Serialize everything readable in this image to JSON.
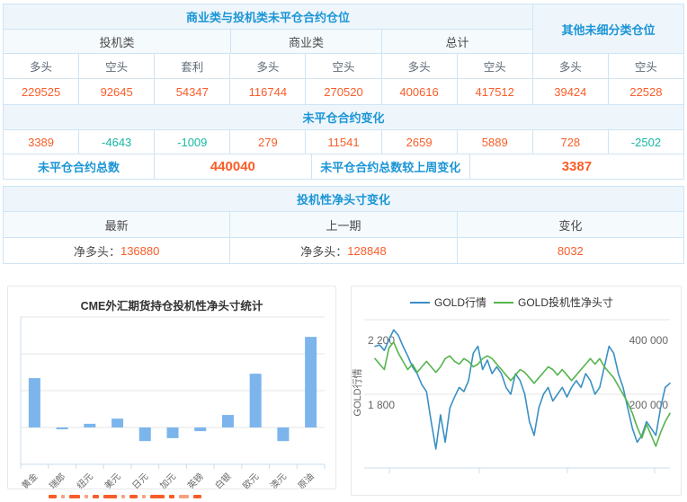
{
  "colors": {
    "border": "#cfe4f4",
    "header_bg": "#eef6fc",
    "blue_text": "#1b95d6",
    "orange": "#f95d29",
    "teal": "#18b8a2",
    "bar": "#7cb5ec",
    "line_blue": "#3a90c4",
    "line_green": "#55b54d",
    "axis": "#c9dcec",
    "grid": "#e6e6e6"
  },
  "position_table": {
    "main_header": "商业类与投机类未平仓合约仓位",
    "other_header": "其他未细分类仓位",
    "group_headers": [
      "投机类",
      "商业类",
      "总计"
    ],
    "col_headers": [
      "多头",
      "空头",
      "套利",
      "多头",
      "空头",
      "多头",
      "空头",
      "多头",
      "空头"
    ],
    "positions": [
      "229525",
      "92645",
      "54347",
      "116744",
      "270520",
      "400616",
      "417512",
      "39424",
      "22528"
    ],
    "change_header": "未平仓合约变化",
    "changes": [
      "3389",
      "-4643",
      "-1009",
      "279",
      "11541",
      "2659",
      "5889",
      "728",
      "-2502"
    ],
    "total_label": "未平仓合约总数",
    "total_value": "440040",
    "total_change_label": "未平仓合约总数较上周变化",
    "total_change_value": "3387"
  },
  "net_table": {
    "header": "投机性净头寸变化",
    "col_headers": [
      "最新",
      "上一期",
      "变化"
    ],
    "latest_label": "净多头：",
    "latest_value": "136880",
    "prev_label": "净多头：",
    "prev_value": "128848",
    "change_value": "8032"
  },
  "chart_data": [
    {
      "type": "bar",
      "title": "CME外汇期货持仓投机性净头寸统计",
      "categories": [
        "黄金",
        "瑞郎",
        "纽元",
        "美元",
        "日元",
        "加元",
        "英镑",
        "白银",
        "欧元",
        "澳元",
        "原油"
      ],
      "values": [
        134000,
        -5000,
        10000,
        24000,
        -37000,
        -29000,
        -10000,
        34000,
        146000,
        -37000,
        246000
      ],
      "ylim": [
        -100000,
        300000
      ],
      "gridline_step": 100000,
      "y_tick_labels_visible": false,
      "grid": true,
      "legend_position": "none"
    },
    {
      "type": "line",
      "title": "",
      "ylabel_left": "GOLD行情",
      "left_axis_ticks": [
        "2 200",
        "1 800"
      ],
      "right_axis_ticks": [
        "400 000",
        "200 000"
      ],
      "left_axis_range_hint": [
        2200,
        1800
      ],
      "right_axis_range_hint": [
        400000,
        200000
      ],
      "grid": true,
      "legend_position": "top",
      "series": [
        {
          "name": "GOLD行情",
          "axis": "left",
          "color": "#3a90c4",
          "values": [
            2150,
            2160,
            2120,
            2200,
            2270,
            2230,
            2150,
            2080,
            2000,
            1950,
            1870,
            1820,
            1600,
            1400,
            1650,
            1450,
            1700,
            1780,
            1850,
            1820,
            1900,
            2100,
            2150,
            1980,
            2050,
            1950,
            2000,
            1950,
            1850,
            1800,
            1950,
            1900,
            1800,
            1600,
            1500,
            1700,
            1800,
            1850,
            1750,
            1800,
            1850,
            1780,
            1850,
            1900,
            1850,
            1950,
            1900,
            1800,
            1850,
            2000,
            2150,
            2100,
            1950,
            1850,
            1700,
            1550,
            1450,
            1500,
            1600,
            1550,
            1500,
            1700,
            1850,
            1880
          ]
        },
        {
          "name": "GOLD投机性净头寸",
          "axis": "right",
          "color": "#55b54d",
          "values": [
            330000,
            310000,
            290000,
            370000,
            390000,
            350000,
            320000,
            290000,
            310000,
            280000,
            300000,
            320000,
            300000,
            280000,
            300000,
            330000,
            340000,
            320000,
            310000,
            330000,
            320000,
            300000,
            310000,
            330000,
            340000,
            330000,
            310000,
            290000,
            270000,
            250000,
            270000,
            290000,
            280000,
            260000,
            240000,
            260000,
            280000,
            300000,
            290000,
            270000,
            290000,
            270000,
            250000,
            270000,
            290000,
            310000,
            330000,
            310000,
            330000,
            300000,
            280000,
            260000,
            230000,
            200000,
            170000,
            130000,
            80000,
            40000,
            90000,
            50000,
            10000,
            60000,
            100000,
            130000
          ]
        }
      ]
    }
  ]
}
